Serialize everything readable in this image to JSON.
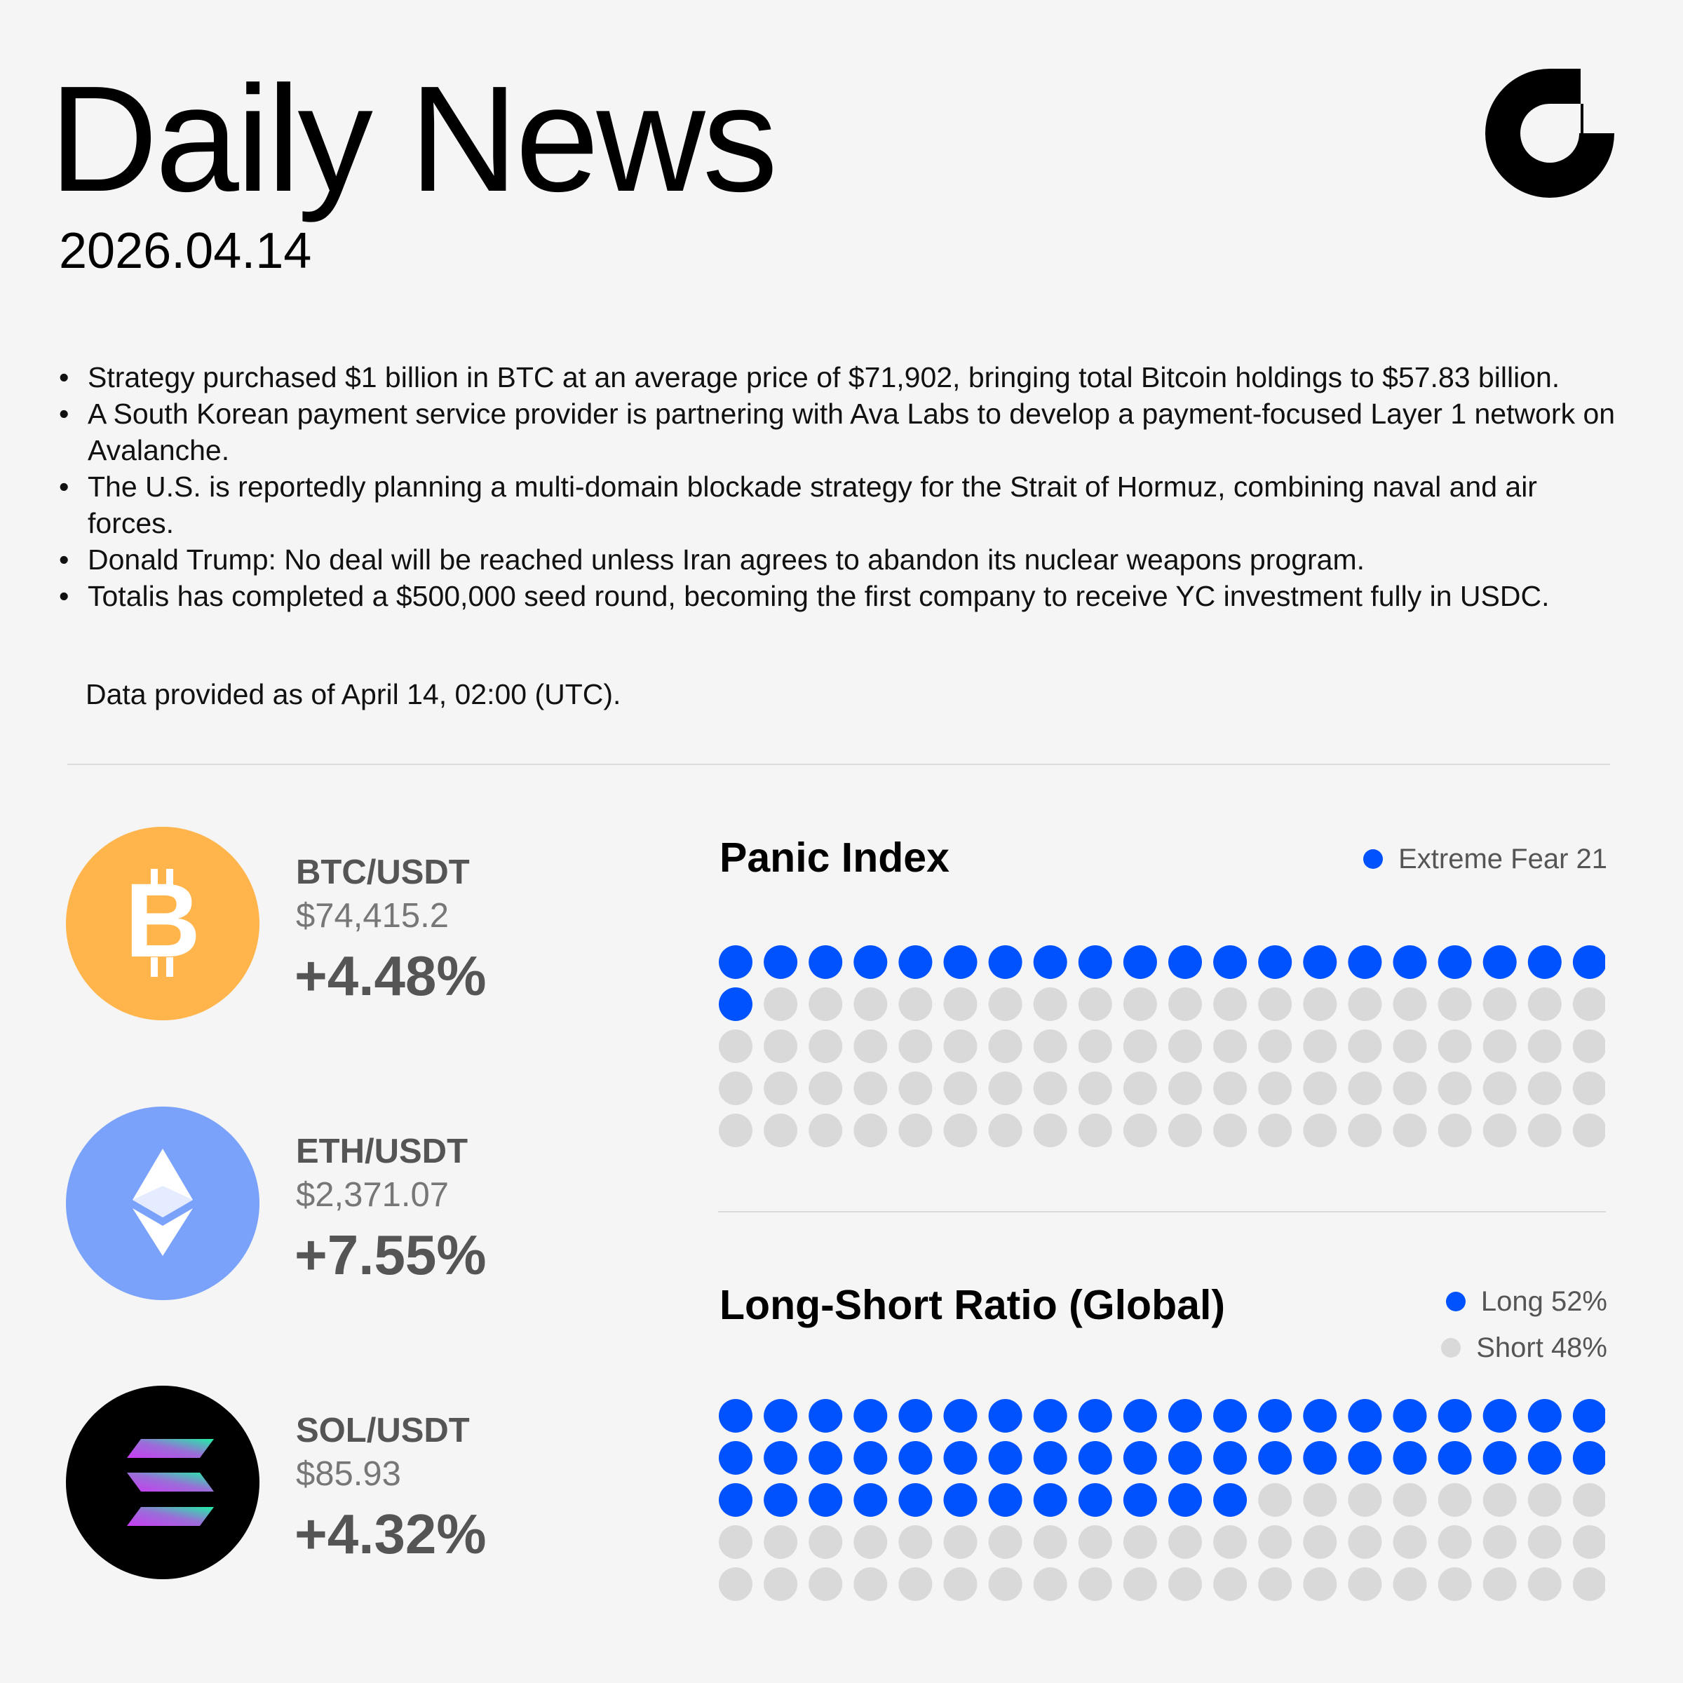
{
  "header": {
    "title": "Daily News",
    "date": "2026.04.14",
    "logo_icon": "brand-logo-icon"
  },
  "news": [
    "Strategy purchased $1 billion in BTC at an average price of $71,902, bringing total Bitcoin holdings to $57.83 billion.",
    "A South Korean payment service provider is partnering with Ava Labs to develop a payment-focused Layer 1 network on Avalanche.",
    "The U.S. is reportedly planning a multi-domain blockade strategy for the Strait of Hormuz, combining naval and air forces.",
    "Donald Trump: No deal will be reached unless Iran agrees to abandon its nuclear weapons program.",
    "Totalis has completed a $500,000 seed round, becoming the first company to receive YC investment fully in USDC."
  ],
  "as_of": "Data provided as of April 14, 02:00 (UTC).",
  "coins": [
    {
      "pair": "BTC/USDT",
      "price": "$74,415.2",
      "change": "+4.48%",
      "icon": "bitcoin-icon",
      "color": "#ffb54c"
    },
    {
      "pair": "ETH/USDT",
      "price": "$2,371.07",
      "change": "+7.55%",
      "icon": "ethereum-icon",
      "color": "#7ba2fb"
    },
    {
      "pair": "SOL/USDT",
      "price": "$85.93",
      "change": "+4.32%",
      "icon": "solana-icon",
      "color": "#000000"
    }
  ],
  "panic_index": {
    "title": "Panic Index",
    "legend": "Extreme Fear 21",
    "value": 21,
    "total_dots": 100,
    "filled_color": "#0052ff",
    "empty_color": "#d9d9d9"
  },
  "long_short": {
    "title": "Long-Short Ratio (Global)",
    "long_label": "Long 52%",
    "short_label": "Short 48%",
    "long_value": 52,
    "total_dots": 100,
    "filled_color": "#0052ff",
    "empty_color": "#d9d9d9"
  }
}
